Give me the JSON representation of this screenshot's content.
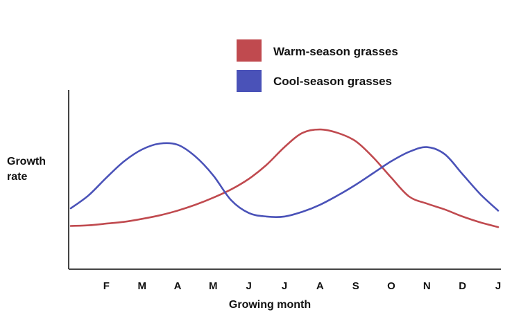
{
  "chart_data": {
    "type": "line",
    "title": "",
    "xlabel": "Growing month",
    "ylabel_lines": [
      "Growth",
      "rate"
    ],
    "x_ticks": [
      "F",
      "M",
      "A",
      "M",
      "J",
      "J",
      "A",
      "S",
      "O",
      "N",
      "D",
      "J"
    ],
    "x": [
      0,
      0.5,
      1,
      1.5,
      2,
      2.5,
      3,
      3.5,
      4,
      4.5,
      5,
      5.5,
      6,
      6.5,
      7,
      7.5,
      8,
      8.5,
      9,
      9.5,
      10,
      10.5,
      11,
      11.5,
      12
    ],
    "xlim": [
      0,
      12
    ],
    "ylim": [
      0,
      100
    ],
    "grid": false,
    "legend_position": "top-right",
    "series": [
      {
        "name": "Warm-season grasses",
        "color": "#c04a4f",
        "values": [
          15,
          15.5,
          17,
          18.5,
          21,
          24,
          28,
          33,
          39,
          46,
          55,
          67,
          82,
          94,
          97,
          94,
          87,
          73,
          56,
          40,
          34,
          29,
          23,
          18,
          14
        ]
      },
      {
        "name": "Cool-season grasses",
        "color": "#4a52b8",
        "values": [
          30,
          41,
          56,
          70,
          80,
          85,
          84,
          74,
          58,
          37,
          26,
          23,
          23,
          27,
          33,
          41,
          50,
          60,
          70,
          78,
          82,
          76,
          59,
          42,
          28
        ]
      }
    ]
  }
}
